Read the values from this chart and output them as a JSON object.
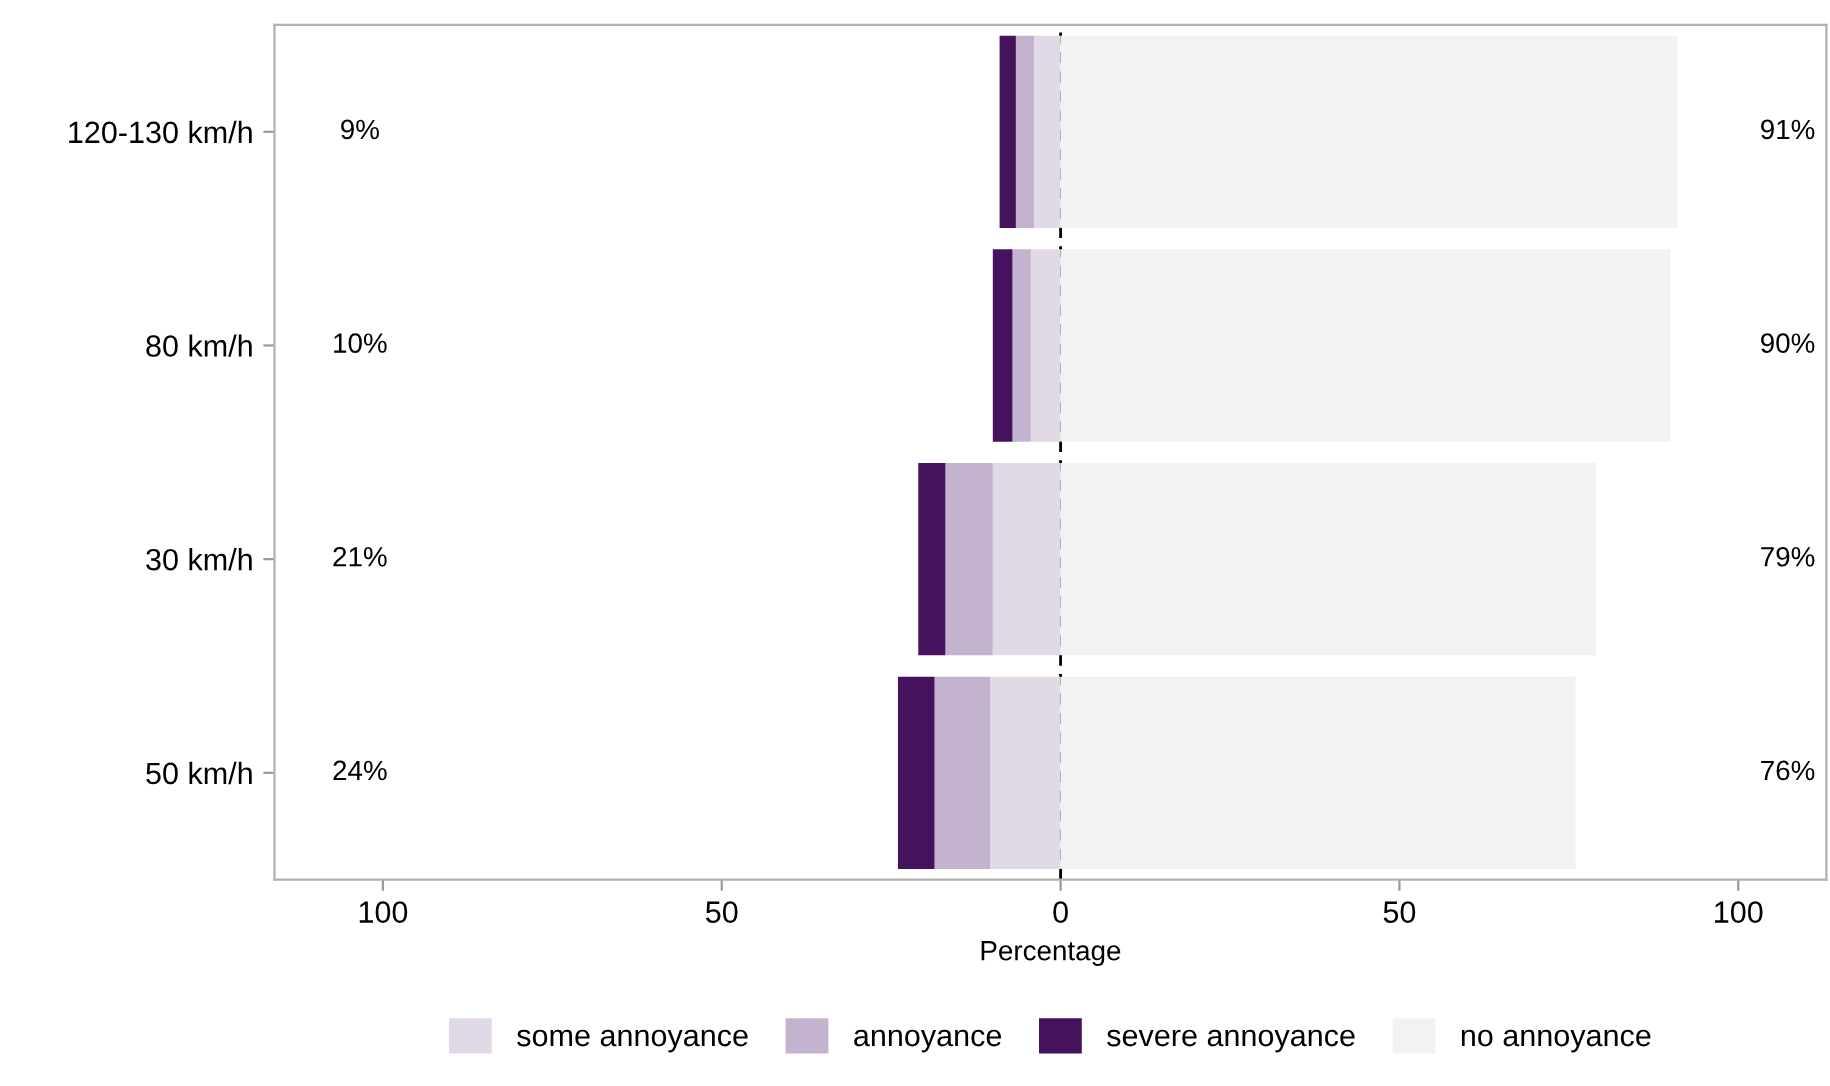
{
  "chart_data": {
    "type": "bar",
    "orientation": "horizontal",
    "stacked": true,
    "xlabel": "Percentage",
    "categories": [
      "120-130 km/h",
      "80 km/h",
      "30 km/h",
      "50 km/h"
    ],
    "series": [
      {
        "name": "some annoyance",
        "color": "#e2d9e6",
        "values": [
          -3.9,
          -4.4,
          -10.0,
          -10.4
        ]
      },
      {
        "name": "annoyance",
        "color": "#c3b3cf",
        "values": [
          -2.7,
          -2.7,
          -7.0,
          -8.2
        ]
      },
      {
        "name": "severe annoyance",
        "color": "#45135e",
        "values": [
          -2.4,
          -2.9,
          -4.0,
          -5.4
        ]
      },
      {
        "name": "no annoyance",
        "color": "#f2f2f2",
        "values": [
          91,
          90,
          79,
          76
        ]
      }
    ],
    "xlim": [
      -116,
      113
    ],
    "xticks": [
      {
        "value": -100,
        "label": "100"
      },
      {
        "value": -50,
        "label": "50"
      },
      0,
      50,
      100
    ],
    "ref_lines": [
      {
        "axis": "x",
        "value": 0,
        "color": "#000000",
        "line_style": "dashed"
      }
    ],
    "annotations": [
      "9%",
      "91%",
      "10%",
      "90%",
      "21%",
      "79%",
      "24%",
      "76%"
    ],
    "legend": "bottom"
  }
}
